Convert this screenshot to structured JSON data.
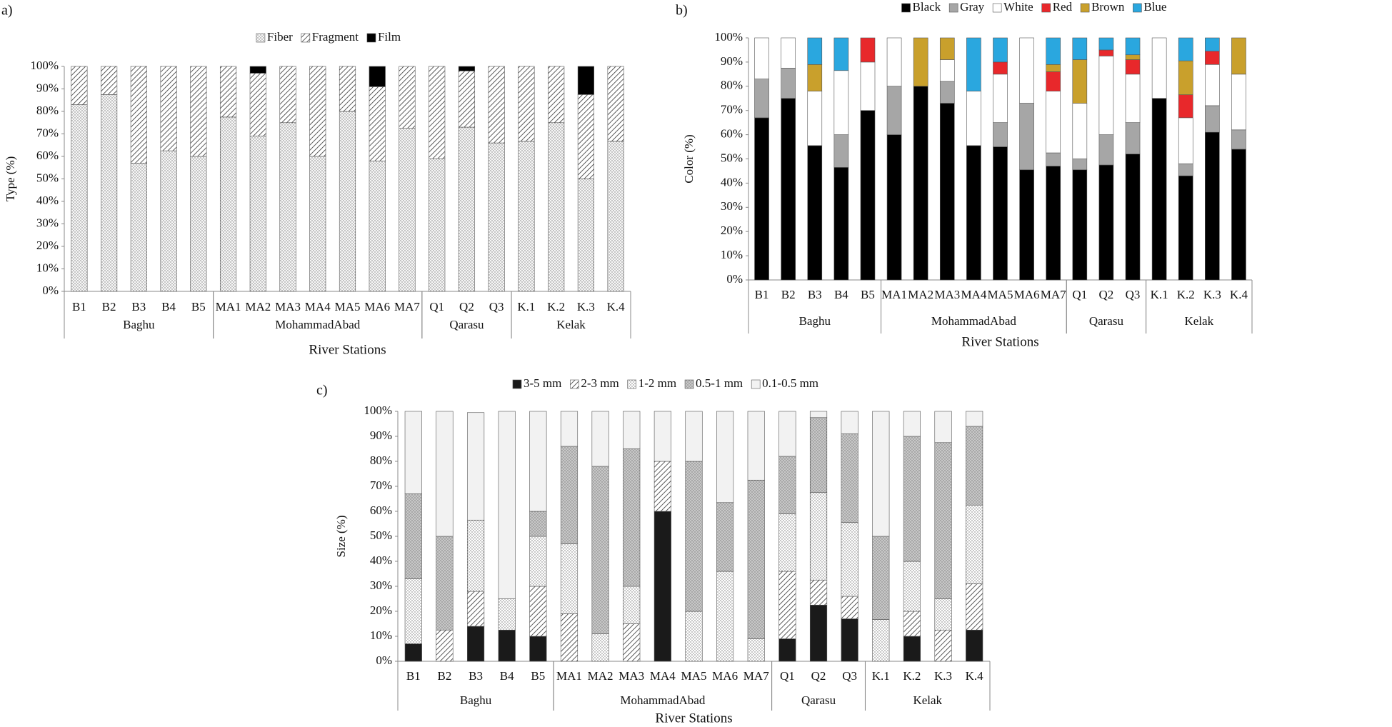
{
  "chart_data": [
    {
      "panel": "a)",
      "type": "bar",
      "stacked": true,
      "y_label": "Type (%)",
      "x_label": "River Stations",
      "legend": "top",
      "categories": [
        "B1",
        "B2",
        "B3",
        "B4",
        "B5",
        "MA1",
        "MA2",
        "MA3",
        "MA4",
        "MA5",
        "MA6",
        "MA7",
        "Q1",
        "Q2",
        "Q3",
        "K.1",
        "K.2",
        "K.3",
        "K.4"
      ],
      "groups": [
        {
          "name": "Baghu",
          "members": [
            "B1",
            "B2",
            "B3",
            "B4",
            "B5"
          ]
        },
        {
          "name": "MohammadAbad",
          "members": [
            "MA1",
            "MA2",
            "MA3",
            "MA4",
            "MA5",
            "MA6",
            "MA7"
          ]
        },
        {
          "name": "Qarasu",
          "members": [
            "Q1",
            "Q2",
            "Q3"
          ]
        },
        {
          "name": "Kelak",
          "members": [
            "K.1",
            "K.2",
            "K.3",
            "K.4"
          ]
        }
      ],
      "ylim": [
        0,
        100
      ],
      "yticks": [
        {
          "value": 0,
          "label": "0%"
        },
        {
          "value": 10,
          "label": "10%"
        },
        {
          "value": 20,
          "label": "20%"
        },
        {
          "value": 30,
          "label": "30%"
        },
        {
          "value": 40,
          "label": "40%"
        },
        {
          "value": 50,
          "label": "50%"
        },
        {
          "value": 60,
          "label": "60%"
        },
        {
          "value": 70,
          "label": "70%"
        },
        {
          "value": 80,
          "label": "80%"
        },
        {
          "value": 90,
          "label": "90%"
        },
        {
          "value": 100,
          "label": "100%"
        }
      ],
      "series": [
        {
          "name": "Fiber",
          "color": "#f7f7f7",
          "pattern": "dots",
          "values": [
            83,
            87.5,
            57,
            62.5,
            60,
            77.5,
            69,
            75,
            60,
            80,
            58,
            72.5,
            59,
            73,
            66,
            66.7,
            75,
            50,
            66.7
          ]
        },
        {
          "name": "Fragment",
          "color": "#ffffff",
          "pattern": "hatch",
          "values": [
            17,
            12.5,
            43,
            37.5,
            40,
            22.5,
            28,
            25,
            40,
            20,
            33,
            27.5,
            41,
            25,
            34,
            33.3,
            25,
            37.5,
            33.3
          ]
        },
        {
          "name": "Film",
          "color": "#000000",
          "pattern": "solid",
          "values": [
            0,
            0,
            0,
            0,
            0,
            0,
            3,
            0,
            0,
            0,
            9,
            0,
            0,
            2,
            0,
            0,
            0,
            12.5,
            0
          ]
        }
      ]
    },
    {
      "panel": "b)",
      "type": "bar",
      "stacked": true,
      "y_label": "Color (%)",
      "x_label": "River Stations",
      "legend": "top",
      "categories": [
        "B1",
        "B2",
        "B3",
        "B4",
        "B5",
        "MA1",
        "MA2",
        "MA3",
        "MA4",
        "MA5",
        "MA6",
        "MA7",
        "Q1",
        "Q2",
        "Q3",
        "K.1",
        "K.2",
        "K.3",
        "K.4"
      ],
      "groups": [
        {
          "name": "Baghu",
          "members": [
            "B1",
            "B2",
            "B3",
            "B4",
            "B5"
          ]
        },
        {
          "name": "MohammadAbad",
          "members": [
            "MA1",
            "MA2",
            "MA3",
            "MA4",
            "MA5",
            "MA6",
            "MA7"
          ]
        },
        {
          "name": "Qarasu",
          "members": [
            "Q1",
            "Q2",
            "Q3"
          ]
        },
        {
          "name": "Kelak",
          "members": [
            "K.1",
            "K.2",
            "K.3",
            "K.4"
          ]
        }
      ],
      "ylim": [
        0,
        100
      ],
      "yticks": [
        {
          "value": 0,
          "label": "0%"
        },
        {
          "value": 10,
          "label": "10%"
        },
        {
          "value": 20,
          "label": "20%"
        },
        {
          "value": 30,
          "label": "30%"
        },
        {
          "value": 40,
          "label": "40%"
        },
        {
          "value": 50,
          "label": "50%"
        },
        {
          "value": 60,
          "label": "60%"
        },
        {
          "value": 70,
          "label": "70%"
        },
        {
          "value": 80,
          "label": "80%"
        },
        {
          "value": 90,
          "label": "90%"
        },
        {
          "value": 100,
          "label": "100%"
        }
      ],
      "series": [
        {
          "name": "Black",
          "color": "#000000",
          "pattern": "solid",
          "values": [
            67,
            75,
            55.5,
            46.5,
            70,
            60,
            80,
            73,
            55.5,
            55,
            45.5,
            47,
            45.5,
            47.5,
            52,
            75,
            43,
            61,
            54
          ]
        },
        {
          "name": "Gray",
          "color": "#a6a6a6",
          "pattern": "solid",
          "values": [
            16,
            12.5,
            0,
            13.5,
            0,
            20,
            0,
            9,
            0,
            10,
            27.5,
            5.5,
            4.5,
            12.5,
            13,
            0,
            5,
            11,
            8
          ]
        },
        {
          "name": "White",
          "color": "#ffffff",
          "pattern": "solid",
          "values": [
            17,
            12.5,
            22.5,
            26.5,
            20,
            20,
            0,
            9,
            22.5,
            20,
            27,
            25.5,
            23,
            32.5,
            20,
            25,
            19,
            17,
            23
          ]
        },
        {
          "name": "Red",
          "color": "#e8282b",
          "pattern": "solid",
          "values": [
            0,
            0,
            0,
            0,
            10,
            0,
            0,
            0,
            0,
            5,
            0,
            8,
            0,
            2.5,
            6,
            0,
            9.5,
            5.5,
            0
          ]
        },
        {
          "name": "Brown",
          "color": "#c9a02c",
          "pattern": "solid",
          "values": [
            0,
            0,
            11,
            0,
            0,
            0,
            20,
            9,
            0,
            0,
            0,
            3,
            18,
            0,
            2,
            0,
            14,
            0,
            15
          ]
        },
        {
          "name": "Blue",
          "color": "#2aa7df",
          "pattern": "solid",
          "values": [
            0,
            0,
            11,
            13.5,
            0,
            0,
            0,
            0,
            22,
            10,
            0,
            11,
            9,
            5,
            7,
            0,
            9.5,
            5.5,
            0
          ]
        }
      ]
    },
    {
      "panel": "c)",
      "type": "bar",
      "stacked": true,
      "y_label": "Size (%)",
      "x_label": "River Stations",
      "legend": "top",
      "categories": [
        "B1",
        "B2",
        "B3",
        "B4",
        "B5",
        "MA1",
        "MA2",
        "MA3",
        "MA4",
        "MA5",
        "MA6",
        "MA7",
        "Q1",
        "Q2",
        "Q3",
        "K.1",
        "K.2",
        "K.3",
        "K.4"
      ],
      "groups": [
        {
          "name": "Baghu",
          "members": [
            "B1",
            "B2",
            "B3",
            "B4",
            "B5"
          ]
        },
        {
          "name": "MohammadAbad",
          "members": [
            "MA1",
            "MA2",
            "MA3",
            "MA4",
            "MA5",
            "MA6",
            "MA7"
          ]
        },
        {
          "name": "Qarasu",
          "members": [
            "Q1",
            "Q2",
            "Q3"
          ]
        },
        {
          "name": "Kelak",
          "members": [
            "K.1",
            "K.2",
            "K.3",
            "K.4"
          ]
        }
      ],
      "ylim": [
        0,
        100
      ],
      "yticks": [
        {
          "value": 0,
          "label": "0%"
        },
        {
          "value": 10,
          "label": "10%"
        },
        {
          "value": 20,
          "label": "20%"
        },
        {
          "value": 30,
          "label": "30%"
        },
        {
          "value": 40,
          "label": "40%"
        },
        {
          "value": 50,
          "label": "50%"
        },
        {
          "value": 60,
          "label": "60%"
        },
        {
          "value": 70,
          "label": "70%"
        },
        {
          "value": 80,
          "label": "80%"
        },
        {
          "value": 90,
          "label": "90%"
        },
        {
          "value": 100,
          "label": "100%"
        }
      ],
      "series": [
        {
          "name": "3-5 mm",
          "color": "#1a1a1a",
          "pattern": "solid",
          "values": [
            7,
            0,
            14,
            12.5,
            10,
            0,
            0,
            0,
            60,
            0,
            0,
            0,
            9,
            22.5,
            17,
            0,
            10,
            0,
            12.5
          ]
        },
        {
          "name": "2-3 mm",
          "color": "#ffffff",
          "pattern": "hatch",
          "values": [
            0,
            12.5,
            14,
            0,
            20,
            19,
            0,
            15,
            20,
            0,
            0,
            0,
            27,
            10,
            9,
            0,
            10,
            12.5,
            18.5
          ]
        },
        {
          "name": "1-2 mm",
          "color": "#ffffff",
          "pattern": "dots",
          "values": [
            26,
            0,
            28.5,
            12.5,
            20,
            28,
            11,
            15,
            0,
            20,
            36,
            9,
            23,
            35,
            29.5,
            16.7,
            20,
            12.5,
            31.5
          ]
        },
        {
          "name": "0.5-1 mm",
          "color": "#c8c8c8",
          "pattern": "dots",
          "values": [
            34,
            37.5,
            0,
            0,
            10,
            39,
            67,
            55,
            0,
            60,
            27.5,
            63.5,
            23,
            30,
            35.5,
            33.3,
            50,
            62.5,
            31.5
          ]
        },
        {
          "name": "0.1-0.5 mm",
          "color": "#f2f2f2",
          "pattern": "solid",
          "values": [
            33,
            50,
            43,
            75,
            40,
            14,
            22,
            15,
            20,
            20,
            36.5,
            27.5,
            18,
            2.5,
            9,
            50,
            10,
            12.5,
            6
          ]
        }
      ]
    }
  ]
}
